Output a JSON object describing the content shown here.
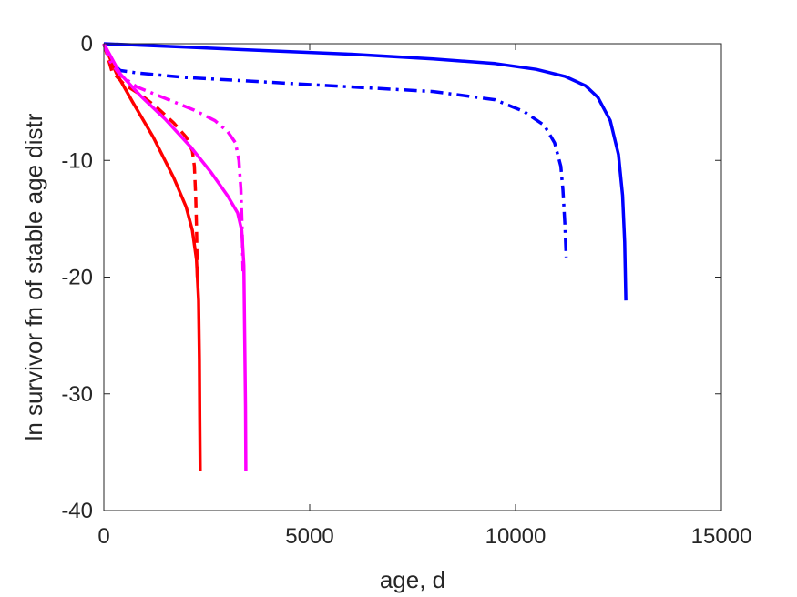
{
  "chart_data": {
    "type": "line",
    "xlabel": "age, d",
    "ylabel": "ln survivor fn of stable age distr",
    "xlim": [
      0,
      15000
    ],
    "ylim": [
      -40,
      0
    ],
    "xticks": [
      0,
      5000,
      10000,
      15000
    ],
    "yticks": [
      0,
      -10,
      -20,
      -30,
      -40
    ],
    "xtick_labels": [
      "0",
      "5000",
      "10000",
      "15000"
    ],
    "ytick_labels": [
      "0",
      "-10",
      "-20",
      "-30",
      "-40"
    ],
    "grid": false,
    "legend": "none",
    "series": [
      {
        "color": "#0000ff",
        "style": "solid",
        "x": [
          0,
          2000,
          4000,
          6000,
          8000,
          9500,
          10500,
          11200,
          11700,
          12000,
          12300,
          12500,
          12600,
          12650,
          12680
        ],
        "y": [
          0,
          -0.3,
          -0.6,
          -0.9,
          -1.3,
          -1.7,
          -2.2,
          -2.8,
          -3.6,
          -4.6,
          -6.6,
          -9.5,
          -13.0,
          -17.0,
          -22.0
        ]
      },
      {
        "color": "#0000ff",
        "style": "dashdot",
        "x": [
          0,
          150,
          400,
          800,
          2000,
          4000,
          6000,
          8000,
          9500,
          10200,
          10700,
          10950,
          11100,
          11150,
          11200,
          11230
        ],
        "y": [
          0,
          -1.5,
          -2.3,
          -2.5,
          -2.9,
          -3.3,
          -3.7,
          -4.1,
          -4.8,
          -5.8,
          -7.0,
          -8.5,
          -10.5,
          -12.5,
          -15.5,
          -18.3
        ]
      },
      {
        "color": "#ff0000",
        "style": "solid",
        "x": [
          0,
          300,
          700,
          1200,
          1700,
          2000,
          2150,
          2250,
          2300,
          2320,
          2330,
          2340
        ],
        "y": [
          0,
          -2.5,
          -5.0,
          -8.0,
          -11.5,
          -14.0,
          -16.0,
          -18.5,
          -22.0,
          -27.0,
          -32.0,
          -36.6
        ]
      },
      {
        "color": "#ff0000",
        "style": "dashed",
        "x": [
          0,
          200,
          500,
          900,
          1300,
          1700,
          2000,
          2150,
          2200,
          2230,
          2250,
          2260,
          2270
        ],
        "y": [
          0,
          -2.4,
          -3.5,
          -4.4,
          -5.5,
          -6.8,
          -8.0,
          -9.2,
          -10.5,
          -13.0,
          -15.5,
          -17.8,
          -20.0
        ]
      },
      {
        "color": "#ff00ff",
        "style": "solid",
        "x": [
          0,
          400,
          900,
          1500,
          2100,
          2600,
          3000,
          3250,
          3350,
          3400,
          3420,
          3440,
          3450
        ],
        "y": [
          0,
          -2.6,
          -4.5,
          -6.5,
          -8.8,
          -11.0,
          -13.0,
          -14.5,
          -16.0,
          -19.0,
          -25.0,
          -31.0,
          -36.6
        ]
      },
      {
        "color": "#ff00ff",
        "style": "dashdot",
        "x": [
          0,
          150,
          400,
          800,
          1500,
          2200,
          2700,
          3000,
          3200,
          3280,
          3330,
          3360,
          3380
        ],
        "y": [
          0,
          -1.5,
          -2.7,
          -3.7,
          -4.7,
          -5.7,
          -6.6,
          -7.5,
          -8.5,
          -10.0,
          -12.5,
          -16.0,
          -19.5
        ]
      }
    ]
  }
}
